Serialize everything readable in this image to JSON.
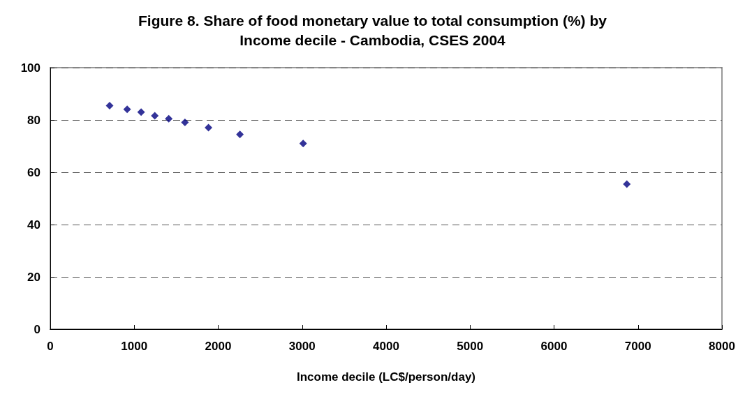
{
  "chart_data": {
    "type": "scatter",
    "title": "Figure 8. Share of food monetary value to total consumption (%) by\nIncome decile - Cambodia, CSES 2004",
    "xlabel": "Income decile (LC$/person/day)",
    "x": [
      707,
      916,
      1082,
      1245,
      1411,
      1604,
      1884,
      2259,
      3012,
      6867
    ],
    "values": [
      85.5,
      84.1,
      83.0,
      81.6,
      80.5,
      79.1,
      77.1,
      74.5,
      71.0,
      55.5
    ],
    "color": "#000080",
    "marker": "diamond",
    "xlim": [
      0,
      8000
    ],
    "xticks": [
      0,
      1000,
      2000,
      3000,
      4000,
      5000,
      6000,
      7000,
      8000
    ],
    "ylim": [
      0,
      100
    ],
    "yticks": [
      0,
      20,
      40,
      60,
      80,
      100
    ],
    "grid": "y"
  }
}
